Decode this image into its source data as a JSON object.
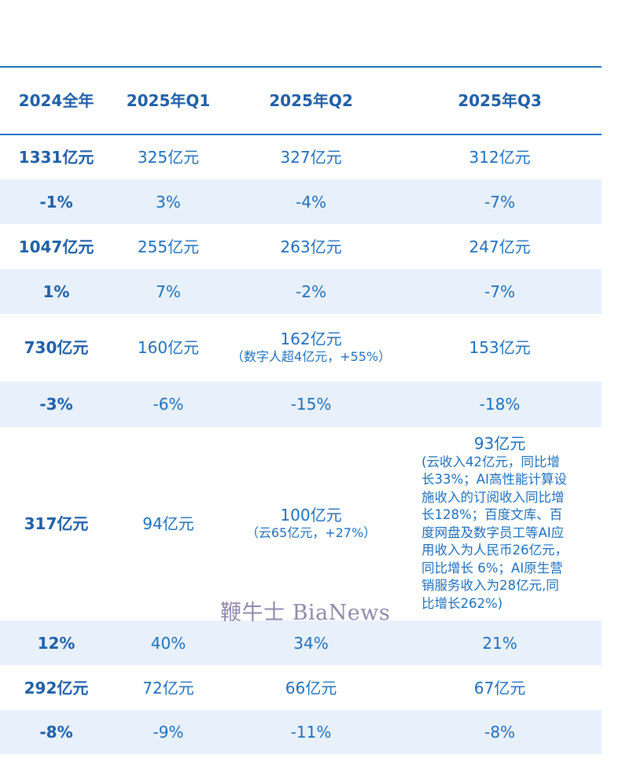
{
  "table": {
    "headers": [
      "2024全年",
      "2025年Q1",
      "2025年Q2",
      "2025年Q3"
    ],
    "rows": [
      {
        "cells": [
          "1331亿元",
          "325亿元",
          "327亿元",
          "312亿元"
        ]
      },
      {
        "cells": [
          "-1%",
          "3%",
          "-4%",
          "-7%"
        ]
      },
      {
        "cells": [
          "1047亿元",
          "255亿元",
          "263亿元",
          "247亿元"
        ]
      },
      {
        "cells": [
          "1%",
          "7%",
          "-2%",
          "-7%"
        ]
      },
      {
        "cells": [
          "730亿元",
          "160亿元",
          "162亿元",
          "153亿元"
        ],
        "q2_note": "（数字人超4亿元，+55%）"
      },
      {
        "cells": [
          "-3%",
          "-6%",
          "-15%",
          "-18%"
        ]
      },
      {
        "cells": [
          "317亿元",
          "94亿元",
          "100亿元",
          "93亿元"
        ],
        "q2_note": "（云65亿元，+27%）",
        "q3_note_lines": [
          "(云收入42亿元，同比增",
          "长33%；AI高性能计算设",
          "施收入的订阅收入同比增",
          "长128%；百度文库、百",
          "度网盘及数字员工等AI应",
          "用收入为人民币26亿元，",
          "同比增长 6%；AI原生营",
          "销服务收入为28亿元,同",
          "比增长262%)"
        ]
      },
      {
        "cells": [
          "12%",
          "40%",
          "34%",
          "21%"
        ]
      },
      {
        "cells": [
          "292亿元",
          "72亿元",
          "66亿元",
          "67亿元"
        ]
      },
      {
        "cells": [
          "-8%",
          "-9%",
          "-11%",
          "-8%"
        ]
      }
    ]
  },
  "watermark": {
    "text": "鞭牛士 BiaNews"
  }
}
